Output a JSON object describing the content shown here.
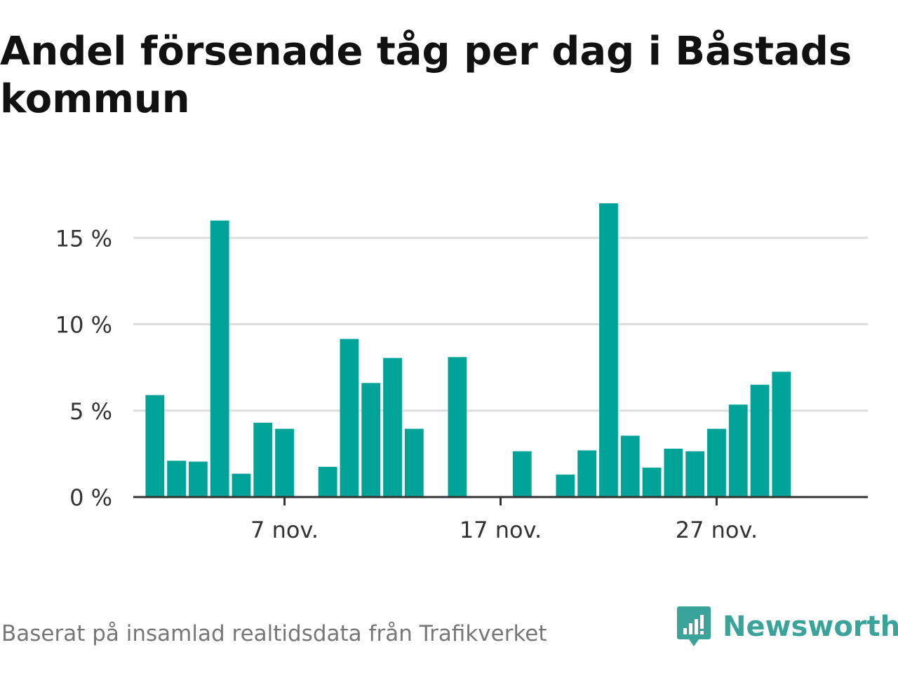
{
  "title": "Andel försenade tåg per dag i Båstads kommun",
  "source": "Baserat på insamlad realtidsdata från Trafikverket",
  "logo": {
    "text": "Newsworthy",
    "icon": "newsworthy-logo-icon",
    "color": "#3aa39a"
  },
  "colors": {
    "bar": "#00a398",
    "grid": "#dddddd",
    "axis": "#333333",
    "text": "#333333"
  },
  "chart_data": {
    "type": "bar",
    "ylim": [
      0,
      17
    ],
    "grid": true,
    "xlim": [
      "2023-10-31",
      "2023-12-04"
    ],
    "x_tick_labels": [
      {
        "date": "2023-11-07",
        "label": "7 nov."
      },
      {
        "date": "2023-11-17",
        "label": "17 nov."
      },
      {
        "date": "2023-11-27",
        "label": "27 nov."
      }
    ],
    "y_tick_labels": [
      {
        "value": 0,
        "label": "0 %"
      },
      {
        "value": 5,
        "label": "5 %"
      },
      {
        "value": 10,
        "label": "10 %"
      },
      {
        "value": 15,
        "label": "15 %"
      }
    ],
    "x": [
      "2023-11-01",
      "2023-11-02",
      "2023-11-03",
      "2023-11-04",
      "2023-11-05",
      "2023-11-06",
      "2023-11-07",
      "2023-11-08",
      "2023-11-09",
      "2023-11-10",
      "2023-11-11",
      "2023-11-12",
      "2023-11-13",
      "2023-11-14",
      "2023-11-15",
      "2023-11-16",
      "2023-11-17",
      "2023-11-18",
      "2023-11-19",
      "2023-11-20",
      "2023-11-21",
      "2023-11-22",
      "2023-11-23",
      "2023-11-24",
      "2023-11-25",
      "2023-11-26",
      "2023-11-27",
      "2023-11-28",
      "2023-11-29",
      "2023-11-30"
    ],
    "values": [
      5.9,
      2.1,
      2.05,
      16.0,
      1.35,
      4.3,
      3.95,
      0,
      1.75,
      9.15,
      6.6,
      8.05,
      3.95,
      0,
      8.1,
      0,
      0,
      2.65,
      0,
      1.3,
      2.7,
      17.0,
      3.55,
      1.7,
      2.8,
      2.65,
      3.95,
      5.35,
      6.5,
      7.25
    ]
  }
}
